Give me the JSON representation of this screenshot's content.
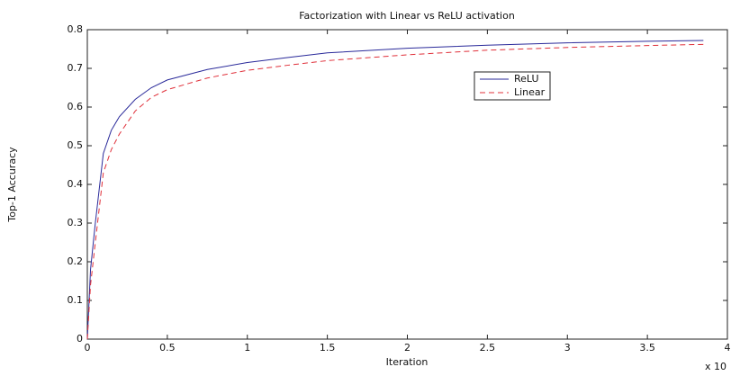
{
  "chart_data": {
    "type": "line",
    "title": "Factorization with Linear vs ReLU activation",
    "x_label": "Iteration",
    "y_label": "Top-1 Accuracy",
    "x_multiplier": "x 10",
    "x": [
      0,
      0.02,
      0.05,
      0.1,
      0.15,
      0.2,
      0.3,
      0.4,
      0.5,
      0.75,
      1,
      1.25,
      1.5,
      2,
      2.5,
      3,
      3.5,
      3.85
    ],
    "series": [
      {
        "name": "ReLU",
        "color": "#2a2a9a",
        "dash": "solid",
        "values": [
          0,
          0.18,
          0.3,
          0.48,
          0.54,
          0.575,
          0.62,
          0.65,
          0.67,
          0.697,
          0.715,
          0.728,
          0.74,
          0.752,
          0.76,
          0.766,
          0.77,
          0.772
        ]
      },
      {
        "name": "Linear",
        "color": "#e0303a",
        "dash": "dashed",
        "values": [
          0,
          0.14,
          0.25,
          0.43,
          0.49,
          0.53,
          0.59,
          0.625,
          0.645,
          0.675,
          0.695,
          0.708,
          0.72,
          0.735,
          0.747,
          0.754,
          0.759,
          0.762
        ]
      }
    ],
    "xlim": [
      0,
      4
    ],
    "xticks": [
      0,
      0.5,
      1,
      1.5,
      2,
      2.5,
      3,
      3.5,
      4
    ],
    "ylim": [
      0,
      0.8
    ],
    "yticks": [
      0,
      0.1,
      0.2,
      0.3,
      0.4,
      0.5,
      0.6,
      0.7,
      0.8
    ],
    "grid": false,
    "legend": "upper right"
  }
}
